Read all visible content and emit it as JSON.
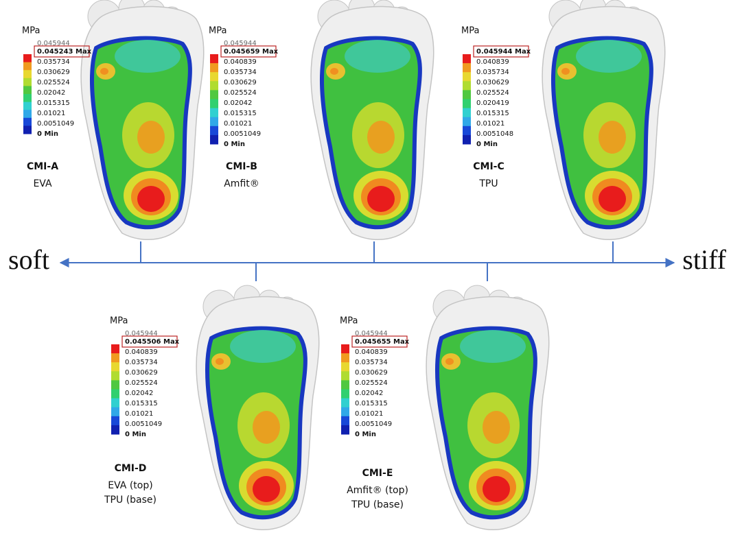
{
  "axis": {
    "left": "soft",
    "right": "stiff"
  },
  "panels": [
    {
      "legend": {
        "unit": "MPa",
        "top": "0.045944",
        "max": "0.045243 Max",
        "ticks": [
          "0.035734",
          "0.030629",
          "0.025524",
          "0.02042",
          "0.015315",
          "0.01021",
          "0.0051049",
          "0 Min"
        ]
      },
      "name": "CMI-A",
      "material": [
        "EVA"
      ]
    },
    {
      "legend": {
        "unit": "MPa",
        "top": "0.045944",
        "max": "0.045659 Max",
        "ticks": [
          "0.040839",
          "0.035734",
          "0.030629",
          "0.025524",
          "0.02042",
          "0.015315",
          "0.01021",
          "0.0051049",
          "0 Min"
        ]
      },
      "name": "CMI-B",
      "material": [
        "Amfit®"
      ]
    },
    {
      "legend": {
        "unit": "MPa",
        "max": "0.045944 Max",
        "ticks": [
          "0.040839",
          "0.035734",
          "0.030629",
          "0.025524",
          "0.020419",
          "0.015315",
          "0.01021",
          "0.0051048",
          "0 Min"
        ]
      },
      "name": "CMI-C",
      "material": [
        "TPU"
      ]
    },
    {
      "legend": {
        "unit": "MPa",
        "top": "0.045944",
        "max": "0.045506 Max",
        "ticks": [
          "0.040839",
          "0.035734",
          "0.030629",
          "0.025524",
          "0.02042",
          "0.015315",
          "0.01021",
          "0.0051049",
          "0 Min"
        ]
      },
      "name": "CMI-D",
      "material": [
        "EVA (top)",
        "TPU (base)"
      ]
    },
    {
      "legend": {
        "unit": "MPa",
        "top": "0.045944",
        "max": "0.045655 Max",
        "ticks": [
          "0.040839",
          "0.035734",
          "0.030629",
          "0.025524",
          "0.02042",
          "0.015315",
          "0.01021",
          "0.0051049",
          "0 Min"
        ]
      },
      "name": "CMI-E",
      "material": [
        "Amfit® (top)",
        "TPU (base)"
      ]
    }
  ]
}
